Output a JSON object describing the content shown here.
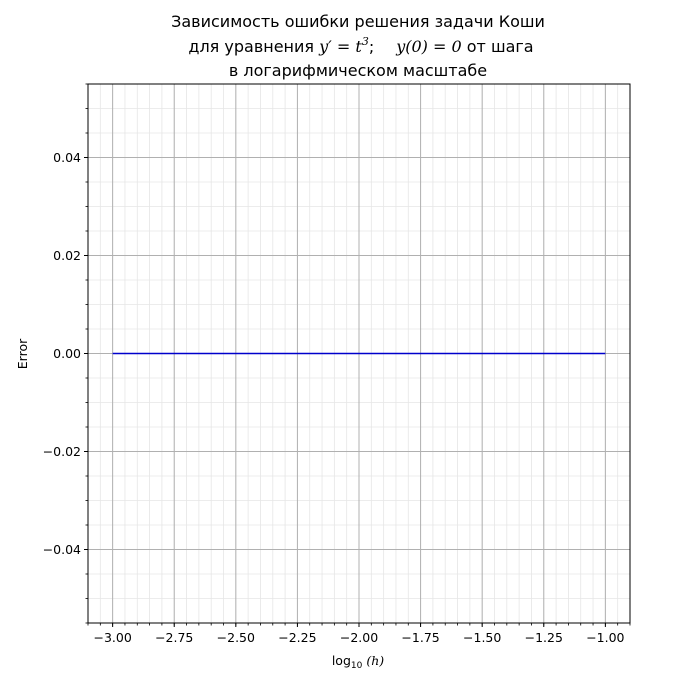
{
  "chart_data": {
    "type": "line",
    "title": {
      "line1": "Зависимость ошибки решения задачи Коши",
      "line2_prefix": "для уравнения ",
      "eq_lhs": "y′ = t",
      "eq_exp": "3",
      "eq_sep": ";",
      "eq_ic": "y(0) = 0",
      "line2_suffix": " от шага",
      "line3": "в логарифмическом масштабе"
    },
    "xlabel": {
      "base": "log",
      "sub": "10",
      "arg": "(h)"
    },
    "ylabel": "Error",
    "xlim": [
      -3.1,
      -0.9
    ],
    "ylim": [
      -0.055,
      0.055
    ],
    "xticks": [
      -3.0,
      -2.75,
      -2.5,
      -2.25,
      -2.0,
      -1.75,
      -1.5,
      -1.25,
      -1.0
    ],
    "xtick_labels": [
      "−3.00",
      "−2.75",
      "−2.50",
      "−2.25",
      "−2.00",
      "−1.75",
      "−1.50",
      "−1.25",
      "−1.00"
    ],
    "yticks": [
      -0.04,
      -0.02,
      0.0,
      0.02,
      0.04
    ],
    "ytick_labels": [
      "−0.04",
      "−0.02",
      "0.00",
      "0.02",
      "0.04"
    ],
    "grid": true,
    "minor_grid": true,
    "series": [
      {
        "color": "#0000cc",
        "x": [
          -3.0,
          -2.5,
          -2.0,
          -1.5,
          -1.0
        ],
        "y": [
          0.0,
          0.0,
          0.0,
          0.0,
          0.0
        ]
      }
    ]
  }
}
